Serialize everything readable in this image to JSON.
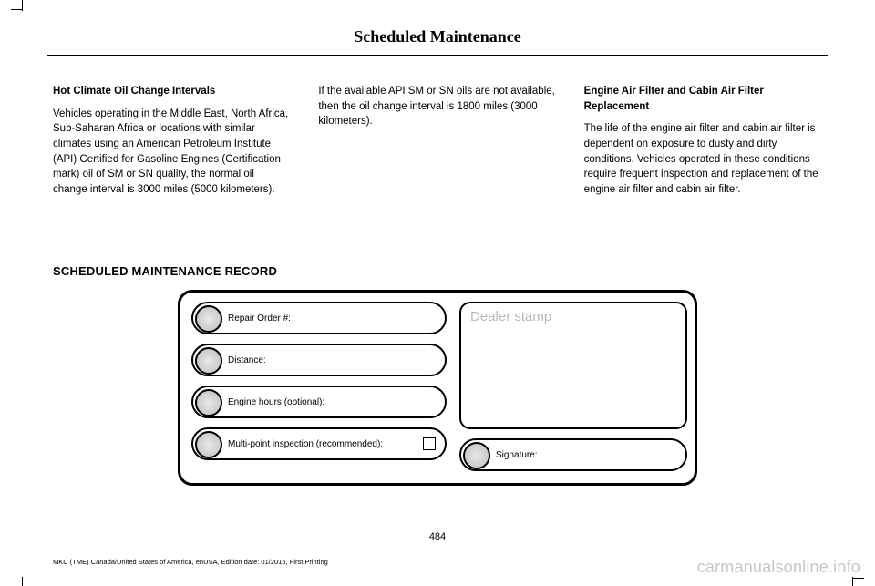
{
  "header": {
    "title": "Scheduled Maintenance"
  },
  "columns": {
    "col1": {
      "heading": "Hot Climate Oil Change Intervals",
      "body": "Vehicles operating in the Middle East, North Africa, Sub-Saharan Africa or locations with similar climates using an American Petroleum Institute (API) Certified for Gasoline Engines (Certification mark) oil of SM or SN quality, the normal oil change interval is 3000 miles (5000 kilometers)."
    },
    "col2": {
      "body": "If the available API SM or SN oils are not available, then the oil change interval is 1800 miles (3000 kilometers)."
    },
    "col3": {
      "heading": "Engine Air Filter and Cabin Air Filter Replacement",
      "body": "The life of the engine air filter and cabin air filter is dependent on exposure to dusty and dirty conditions. Vehicles operated in these conditions require frequent inspection and replacement of the engine air filter and cabin air filter."
    }
  },
  "section_title": "SCHEDULED MAINTENANCE RECORD",
  "record": {
    "repair_order": "Repair Order #:",
    "distance": "Distance:",
    "engine_hours": "Engine hours (optional):",
    "multi_point": "Multi-point inspection (recommended):",
    "dealer_stamp": "Dealer stamp",
    "signature": "Signature:"
  },
  "page_number": "484",
  "footer": "MKC (TME) Canada/United States of America, enUSA, Edition date: 01/2016, First Printing",
  "watermark": "carmanualsonline.info"
}
